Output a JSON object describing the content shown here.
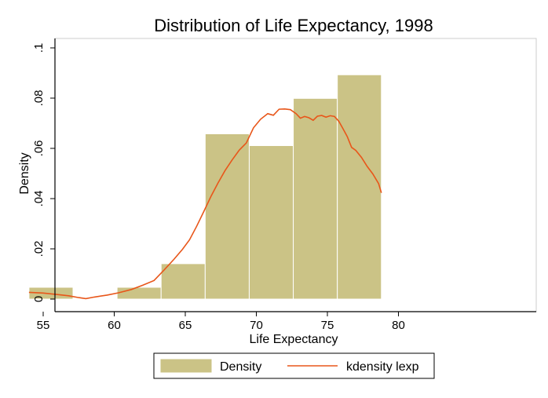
{
  "chart_data": {
    "type": "bar",
    "title": "Distribution of Life Expectancy, 1998",
    "xlabel": "Life Expectancy",
    "ylabel": "Density",
    "xlim": [
      54,
      80
    ],
    "ylim": [
      0,
      0.1
    ],
    "x_ticks": [
      {
        "value": 55,
        "label": "55"
      },
      {
        "value": 60,
        "label": "60"
      },
      {
        "value": 65,
        "label": "65"
      },
      {
        "value": 70,
        "label": "70"
      },
      {
        "value": 75,
        "label": "75"
      },
      {
        "value": 80,
        "label": "80"
      }
    ],
    "y_ticks": [
      {
        "value": 0,
        "label": "0"
      },
      {
        "value": 0.02,
        "label": ".02"
      },
      {
        "value": 0.04,
        "label": ".04"
      },
      {
        "value": 0.06,
        "label": ".06"
      },
      {
        "value": 0.08,
        "label": ".08"
      },
      {
        "value": 0.1,
        "label": ".1"
      }
    ],
    "grid": false,
    "legend_position": "bottom",
    "series": [
      {
        "name": "Density",
        "type": "histogram",
        "color": "#cbc386",
        "bins": [
          {
            "x0": 54.0,
            "x1": 57.1,
            "value": 0.0047
          },
          {
            "x0": 57.1,
            "x1": 60.2,
            "value": 0.0
          },
          {
            "x0": 60.2,
            "x1": 63.3,
            "value": 0.0047
          },
          {
            "x0": 63.3,
            "x1": 66.4,
            "value": 0.0141
          },
          {
            "x0": 66.4,
            "x1": 69.5,
            "value": 0.0658
          },
          {
            "x0": 69.5,
            "x1": 72.6,
            "value": 0.0611
          },
          {
            "x0": 72.6,
            "x1": 75.7,
            "value": 0.0799
          },
          {
            "x0": 75.7,
            "x1": 78.8,
            "value": 0.0893
          }
        ]
      },
      {
        "name": "kdensity lexp",
        "type": "line",
        "color": "#e8561a",
        "x": [
          54.0,
          55.0,
          56.0,
          56.8,
          57.5,
          58.0,
          58.6,
          59.5,
          60.3,
          61.2,
          62.0,
          62.8,
          63.5,
          64.2,
          64.8,
          65.3,
          65.8,
          66.3,
          66.8,
          67.3,
          67.8,
          68.3,
          68.8,
          69.3,
          69.8,
          70.3,
          70.8,
          71.2,
          71.6,
          72.0,
          72.4,
          72.8,
          73.1,
          73.4,
          73.7,
          74.0,
          74.3,
          74.6,
          74.9,
          75.2,
          75.5,
          75.8,
          76.1,
          76.4,
          76.7,
          77.0,
          77.4,
          77.8,
          78.2,
          78.6,
          78.8
        ],
        "y": [
          0.0027,
          0.0024,
          0.0018,
          0.0013,
          0.0006,
          0.0002,
          0.0008,
          0.0016,
          0.0025,
          0.0038,
          0.0055,
          0.0074,
          0.0115,
          0.0158,
          0.0198,
          0.0236,
          0.029,
          0.0348,
          0.0408,
          0.0462,
          0.0512,
          0.0554,
          0.0593,
          0.0622,
          0.0682,
          0.0716,
          0.0738,
          0.0732,
          0.0756,
          0.0757,
          0.0754,
          0.0738,
          0.072,
          0.0727,
          0.0722,
          0.0712,
          0.0728,
          0.0731,
          0.0724,
          0.073,
          0.0727,
          0.0708,
          0.0678,
          0.0647,
          0.0604,
          0.0592,
          0.0564,
          0.0528,
          0.0498,
          0.046,
          0.0423
        ]
      }
    ]
  }
}
